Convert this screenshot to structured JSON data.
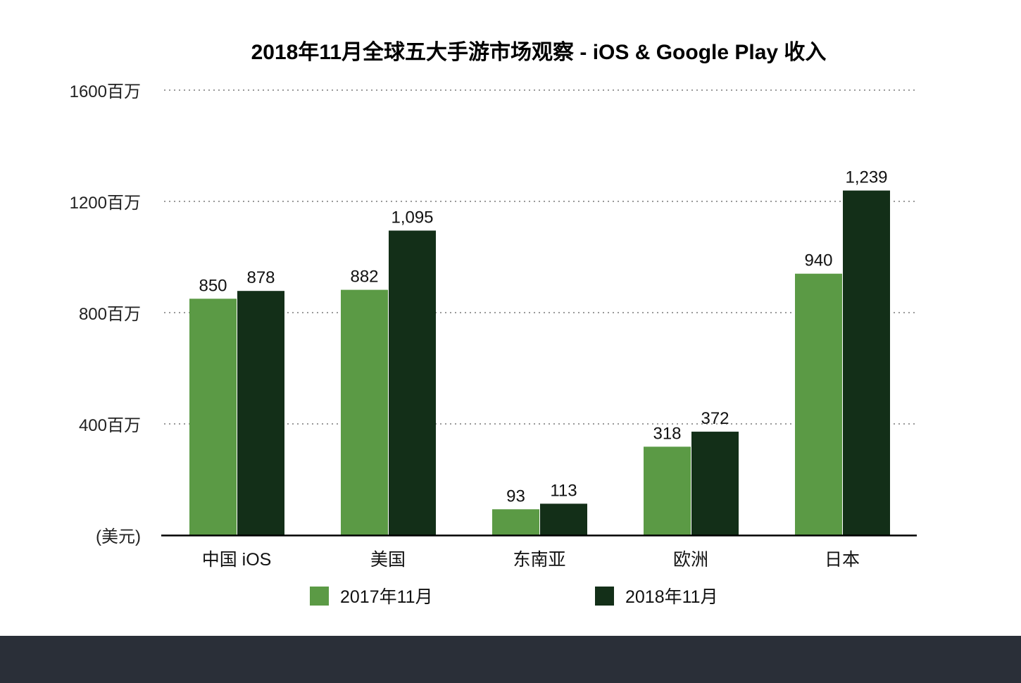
{
  "chart_data": {
    "type": "bar",
    "title": "2018年11月全球五大手游市场观察 - iOS & Google Play 收入",
    "xlabel": "",
    "ylabel": "(美元)",
    "categories": [
      "中国 iOS",
      "美国",
      "东南亚",
      "欧洲",
      "日本"
    ],
    "series": [
      {
        "name": "2017年11月",
        "values": [
          850,
          882,
          93,
          318,
          940
        ],
        "labels": [
          "850",
          "882",
          "93",
          "318",
          "940"
        ],
        "color": "#5b9a45"
      },
      {
        "name": "2018年11月",
        "values": [
          878,
          1095,
          113,
          372,
          1239
        ],
        "labels": [
          "878",
          "1,095",
          "113",
          "372",
          "1,239"
        ],
        "color": "#132f18"
      }
    ],
    "ylim": [
      0,
      1600
    ],
    "yticks": [
      {
        "value": 400,
        "label": "400百万"
      },
      {
        "value": 800,
        "label": "800百万"
      },
      {
        "value": 1200,
        "label": "1200百万"
      },
      {
        "value": 1600,
        "label": "1600百万"
      }
    ],
    "y_zero_label": "(美元)",
    "grid": true,
    "legend_position": "bottom"
  },
  "colors": {
    "footer_band": "#2a2f38"
  }
}
